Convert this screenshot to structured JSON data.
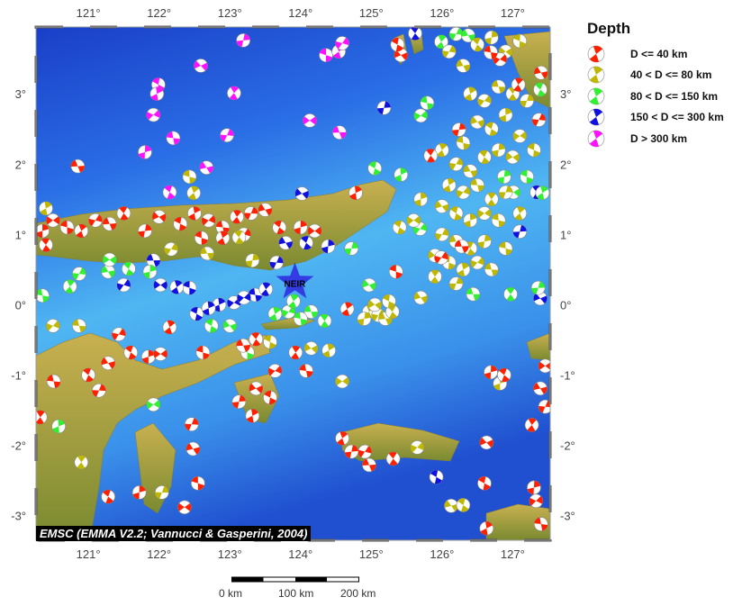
{
  "map": {
    "lon_ticks": [
      121,
      122,
      123,
      124,
      125,
      126,
      127
    ],
    "lat_ticks": [
      3,
      2,
      1,
      0,
      -1,
      -2,
      -3
    ],
    "lon_range": [
      120.26,
      127.53
    ],
    "lat_range": [
      -3.35,
      3.95
    ],
    "station": {
      "label": "NEIR",
      "lon": 123.92,
      "lat": 0.32,
      "color": "#3030e0"
    },
    "credit": "EMSC (EMMA V2.2; Vannucci & Gasperini, 2004)",
    "scale_labels": [
      "0 km",
      "100 km",
      "200 km"
    ],
    "ocean_deep": "#1a3fc8",
    "ocean_shallow": "#4fb6f2",
    "land_color": "#b8a040"
  },
  "legend": {
    "title": "Depth",
    "items": [
      {
        "label": "D <= 40 km",
        "color": "#ff2000"
      },
      {
        "label": "40 < D <= 80 km",
        "color": "#c0b800"
      },
      {
        "label": "80 < D <= 150 km",
        "color": "#30f030"
      },
      {
        "label": "150 < D <= 300 km",
        "color": "#1010e0"
      },
      {
        "label": "D > 300 km",
        "color": "#ff10ff"
      }
    ]
  },
  "events": [
    [
      120.35,
      1.05,
      1
    ],
    [
      120.5,
      1.2,
      1
    ],
    [
      120.7,
      1.1,
      1
    ],
    [
      120.9,
      1.05,
      1
    ],
    [
      121.1,
      1.2,
      1
    ],
    [
      121.3,
      1.15,
      1
    ],
    [
      121.5,
      1.3,
      1
    ],
    [
      121.8,
      1.05,
      1
    ],
    [
      122.0,
      1.25,
      1
    ],
    [
      122.3,
      1.15,
      1
    ],
    [
      122.5,
      1.3,
      1
    ],
    [
      122.7,
      1.2,
      1
    ],
    [
      122.9,
      1.1,
      1
    ],
    [
      123.1,
      1.25,
      1
    ],
    [
      123.3,
      1.3,
      1
    ],
    [
      123.5,
      1.35,
      1
    ],
    [
      123.7,
      1.1,
      1
    ],
    [
      124.0,
      1.1,
      1
    ],
    [
      124.2,
      1.05,
      1
    ],
    [
      122.6,
      0.95,
      1
    ],
    [
      122.9,
      0.95,
      1
    ],
    [
      123.2,
      1.0,
      1
    ],
    [
      120.85,
      1.97,
      1
    ],
    [
      120.4,
      0.85,
      1
    ],
    [
      123.19,
      3.76,
      5
    ],
    [
      122.59,
      3.4,
      5
    ],
    [
      121.99,
      3.13,
      5
    ],
    [
      121.97,
      3.0,
      5
    ],
    [
      121.92,
      2.7,
      5
    ],
    [
      122.2,
      2.37,
      5
    ],
    [
      123.06,
      3.01,
      5
    ],
    [
      122.96,
      2.41,
      5
    ],
    [
      122.67,
      1.95,
      5
    ],
    [
      122.15,
      1.6,
      5
    ],
    [
      121.8,
      2.17,
      5
    ],
    [
      124.13,
      2.62,
      5
    ],
    [
      124.36,
      3.55,
      5
    ],
    [
      124.54,
      3.6,
      5
    ],
    [
      124.59,
      3.72,
      5
    ],
    [
      124.55,
      2.45,
      5
    ],
    [
      125.62,
      3.86,
      4
    ],
    [
      125.18,
      2.8,
      4
    ],
    [
      124.02,
      1.58,
      4
    ],
    [
      122.53,
      -0.13,
      4
    ],
    [
      122.85,
      0.0,
      4
    ],
    [
      123.06,
      0.03,
      4
    ],
    [
      123.36,
      0.14,
      4
    ],
    [
      123.51,
      0.22,
      4
    ],
    [
      123.66,
      0.6,
      4
    ],
    [
      123.79,
      0.88,
      4
    ],
    [
      124.08,
      0.88,
      4
    ],
    [
      124.39,
      0.83,
      4
    ],
    [
      122.02,
      0.28,
      4
    ],
    [
      122.43,
      0.24,
      4
    ],
    [
      122.25,
      0.25,
      4
    ],
    [
      121.5,
      0.28,
      4
    ],
    [
      121.92,
      0.63,
      4
    ],
    [
      127.34,
      1.6,
      4
    ],
    [
      127.1,
      1.04,
      4
    ],
    [
      127.39,
      0.09,
      4
    ],
    [
      125.92,
      -2.45,
      4
    ],
    [
      122.7,
      -0.05,
      4
    ],
    [
      123.2,
      0.1,
      4
    ],
    [
      120.35,
      0.13,
      3
    ],
    [
      120.74,
      0.26,
      3
    ],
    [
      120.87,
      0.44,
      3
    ],
    [
      121.28,
      0.47,
      3
    ],
    [
      121.57,
      0.51,
      3
    ],
    [
      121.87,
      0.47,
      3
    ],
    [
      121.3,
      0.64,
      3
    ],
    [
      123.25,
      -0.68,
      3
    ],
    [
      123.64,
      -0.13,
      3
    ],
    [
      123.83,
      -0.1,
      3
    ],
    [
      124.15,
      -0.1,
      3
    ],
    [
      124.34,
      -0.23,
      3
    ],
    [
      124.72,
      0.8,
      3
    ],
    [
      124.97,
      0.28,
      3
    ],
    [
      125.05,
      1.94,
      3
    ],
    [
      125.42,
      1.85,
      3
    ],
    [
      125.7,
      2.69,
      3
    ],
    [
      125.79,
      2.87,
      3
    ],
    [
      125.99,
      3.74,
      3
    ],
    [
      126.2,
      3.85,
      3
    ],
    [
      126.37,
      3.83,
      3
    ],
    [
      127.39,
      3.06,
      3
    ],
    [
      126.88,
      1.82,
      3
    ],
    [
      127.01,
      1.6,
      3
    ],
    [
      127.2,
      1.82,
      3
    ],
    [
      127.42,
      1.59,
      3
    ],
    [
      125.69,
      1.08,
      3
    ],
    [
      126.44,
      0.15,
      3
    ],
    [
      126.97,
      0.15,
      3
    ],
    [
      127.36,
      0.24,
      3
    ],
    [
      123.0,
      -0.3,
      3
    ],
    [
      122.74,
      -0.3,
      3
    ],
    [
      120.58,
      -1.73,
      3
    ],
    [
      121.92,
      -1.42,
      3
    ],
    [
      124.0,
      -0.2,
      3
    ],
    [
      123.9,
      0.05,
      3
    ],
    [
      126.1,
      3.6,
      2
    ],
    [
      126.3,
      3.4,
      2
    ],
    [
      126.5,
      3.7,
      2
    ],
    [
      126.7,
      3.8,
      2
    ],
    [
      126.9,
      3.6,
      2
    ],
    [
      127.1,
      3.75,
      2
    ],
    [
      126.4,
      3.0,
      2
    ],
    [
      126.6,
      2.9,
      2
    ],
    [
      126.8,
      3.1,
      2
    ],
    [
      127.0,
      3.0,
      2
    ],
    [
      127.2,
      2.9,
      2
    ],
    [
      126.5,
      2.6,
      2
    ],
    [
      126.7,
      2.5,
      2
    ],
    [
      126.9,
      2.7,
      2
    ],
    [
      127.1,
      2.4,
      2
    ],
    [
      126.3,
      2.3,
      2
    ],
    [
      126.0,
      2.2,
      2
    ],
    [
      126.2,
      2.0,
      2
    ],
    [
      126.4,
      1.9,
      2
    ],
    [
      126.6,
      2.1,
      2
    ],
    [
      126.8,
      2.2,
      2
    ],
    [
      127.0,
      2.1,
      2
    ],
    [
      127.3,
      2.2,
      2
    ],
    [
      126.1,
      1.7,
      2
    ],
    [
      126.3,
      1.6,
      2
    ],
    [
      126.5,
      1.7,
      2
    ],
    [
      126.7,
      1.5,
      2
    ],
    [
      126.9,
      1.6,
      2
    ],
    [
      126.0,
      1.4,
      2
    ],
    [
      126.2,
      1.3,
      2
    ],
    [
      126.4,
      1.2,
      2
    ],
    [
      126.6,
      1.3,
      2
    ],
    [
      126.8,
      1.2,
      2
    ],
    [
      127.1,
      1.3,
      2
    ],
    [
      126.0,
      1.0,
      2
    ],
    [
      126.2,
      0.9,
      2
    ],
    [
      126.4,
      0.8,
      2
    ],
    [
      126.6,
      0.9,
      2
    ],
    [
      125.9,
      0.7,
      2
    ],
    [
      126.1,
      0.6,
      2
    ],
    [
      126.3,
      0.5,
      2
    ],
    [
      126.5,
      0.6,
      2
    ],
    [
      126.7,
      0.5,
      2
    ],
    [
      125.9,
      0.4,
      2
    ],
    [
      126.2,
      0.3,
      2
    ],
    [
      125.7,
      0.1,
      2
    ],
    [
      125.4,
      1.1,
      2
    ],
    [
      125.7,
      1.5,
      2
    ],
    [
      125.6,
      1.2,
      2
    ],
    [
      126.9,
      0.8,
      2
    ],
    [
      124.97,
      -0.1,
      2
    ],
    [
      125.1,
      -0.15,
      2
    ],
    [
      125.2,
      -0.2,
      2
    ],
    [
      125.3,
      -0.1,
      2
    ],
    [
      124.9,
      -0.2,
      2
    ],
    [
      125.05,
      0.0,
      2
    ],
    [
      125.25,
      0.05,
      2
    ],
    [
      120.4,
      1.37,
      2
    ],
    [
      120.5,
      -0.3,
      2
    ],
    [
      120.87,
      -0.3,
      2
    ],
    [
      120.9,
      -2.24,
      2
    ],
    [
      122.04,
      -2.67,
      2
    ],
    [
      126.13,
      -2.86,
      2
    ],
    [
      126.3,
      -2.85,
      2
    ],
    [
      126.82,
      -1.12,
      2
    ],
    [
      124.59,
      -1.09,
      2
    ],
    [
      122.43,
      1.82,
      2
    ],
    [
      122.49,
      1.59,
      2
    ],
    [
      122.17,
      0.79,
      2
    ],
    [
      122.68,
      0.73,
      2
    ],
    [
      123.13,
      0.96,
      2
    ],
    [
      123.32,
      0.63,
      2
    ],
    [
      124.15,
      -0.62,
      2
    ],
    [
      123.57,
      -0.53,
      2
    ],
    [
      124.4,
      -0.65,
      2
    ],
    [
      125.65,
      -2.03,
      2
    ],
    [
      120.51,
      -1.09,
      1
    ],
    [
      120.32,
      -1.6,
      1
    ],
    [
      121.15,
      -1.22,
      1
    ],
    [
      121.28,
      -0.83,
      1
    ],
    [
      121.6,
      -0.68,
      1
    ],
    [
      121.85,
      -0.74,
      1
    ],
    [
      122.02,
      -0.7,
      1
    ],
    [
      122.62,
      -0.68,
      1
    ],
    [
      122.15,
      -0.32,
      1
    ],
    [
      121.43,
      -0.42,
      1
    ],
    [
      123.19,
      -0.58,
      1
    ],
    [
      123.37,
      -0.49,
      1
    ],
    [
      123.13,
      -1.38,
      1
    ],
    [
      123.37,
      -1.19,
      1
    ],
    [
      123.57,
      -1.32,
      1
    ],
    [
      123.32,
      -1.58,
      1
    ],
    [
      123.64,
      -0.94,
      1
    ],
    [
      124.08,
      -0.94,
      1
    ],
    [
      123.93,
      -0.68,
      1
    ],
    [
      122.46,
      -1.7,
      1
    ],
    [
      122.48,
      -2.05,
      1
    ],
    [
      121.28,
      -2.73,
      1
    ],
    [
      121.72,
      -2.67,
      1
    ],
    [
      122.36,
      -2.88,
      1
    ],
    [
      122.55,
      -2.54,
      1
    ],
    [
      124.59,
      -1.9,
      1
    ],
    [
      124.91,
      -2.09,
      1
    ],
    [
      124.97,
      -2.28,
      1
    ],
    [
      125.31,
      -2.19,
      1
    ],
    [
      124.72,
      -2.09,
      1
    ],
    [
      126.63,
      -1.96,
      1
    ],
    [
      126.6,
      -2.54,
      1
    ],
    [
      126.63,
      -3.18,
      1
    ],
    [
      127.33,
      -2.79,
      1
    ],
    [
      127.4,
      -3.12,
      1
    ],
    [
      127.27,
      -1.71,
      1
    ],
    [
      127.46,
      -1.45,
      1
    ],
    [
      127.39,
      -1.19,
      1
    ],
    [
      126.88,
      -1.0,
      1
    ],
    [
      126.69,
      -0.96,
      1
    ],
    [
      127.46,
      -0.87,
      1
    ],
    [
      125.35,
      0.47,
      1
    ],
    [
      124.66,
      -0.06,
      1
    ],
    [
      125.99,
      0.67,
      1
    ],
    [
      126.28,
      0.83,
      1
    ],
    [
      125.84,
      2.12,
      1
    ],
    [
      126.24,
      2.49,
      1
    ],
    [
      125.42,
      3.55,
      1
    ],
    [
      125.37,
      3.7,
      1
    ],
    [
      124.78,
      1.59,
      1
    ],
    [
      126.82,
      3.49,
      1
    ],
    [
      126.69,
      3.59,
      1
    ],
    [
      127.08,
      3.13,
      1
    ],
    [
      127.37,
      2.63,
      1
    ],
    [
      127.4,
      3.3,
      1
    ],
    [
      121.0,
      -1.0,
      1
    ],
    [
      127.3,
      -2.6,
      1
    ]
  ]
}
